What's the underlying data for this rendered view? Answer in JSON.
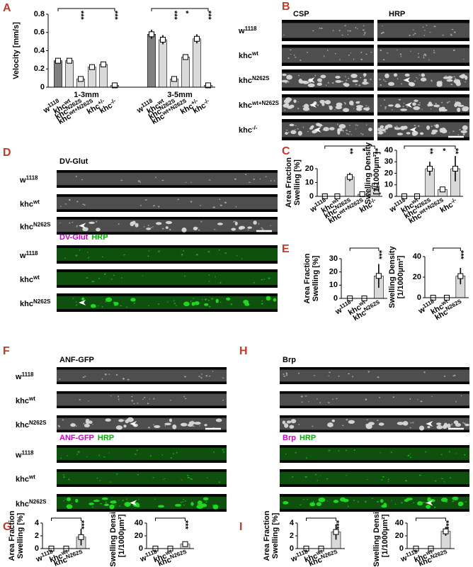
{
  "chart_data": [
    {
      "type": "bar",
      "panel": "A",
      "ylabel": [
        "Velocity [mm/s]"
      ],
      "ylim": [
        0,
        0.8
      ],
      "yticks": [
        0,
        0.2,
        0.4,
        0.6,
        0.8
      ],
      "groups": [
        {
          "name": "1-3mm",
          "categories": [
            {
              "base": "w",
              "sup": "1118"
            },
            {
              "base": "khc",
              "sup": "wt"
            },
            {
              "base": "khc",
              "sup": "N262S"
            },
            {
              "base": "khc",
              "sup": "wt+N262S"
            },
            {
              "base": "khc",
              "sup": "+/-"
            },
            {
              "base": "khc",
              "sup": "-/-"
            }
          ],
          "values": [
            0.29,
            0.29,
            0.09,
            0.22,
            0.25,
            0.02
          ],
          "errors": [
            0.02,
            0.02,
            0.01,
            0.02,
            0.02,
            0.005
          ],
          "significance": [
            null,
            null,
            "***",
            null,
            null,
            "***"
          ],
          "bar_colors": [
            "#808080",
            "#d9d9d9",
            "#d9d9d9",
            "#d9d9d9",
            "#d9d9d9",
            "#d9d9d9"
          ]
        },
        {
          "name": "3-5mm",
          "categories": [
            {
              "base": "w",
              "sup": "1118"
            },
            {
              "base": "khc",
              "sup": "wt"
            },
            {
              "base": "khc",
              "sup": "N262S"
            },
            {
              "base": "khc",
              "sup": "wt+N262S"
            },
            {
              "base": "khc",
              "sup": "+/-"
            },
            {
              "base": "khc",
              "sup": "-/-"
            }
          ],
          "values": [
            0.58,
            0.52,
            0.09,
            0.33,
            0.53,
            0.02
          ],
          "errors": [
            0.05,
            0.05,
            0.01,
            0.02,
            0.05,
            0.005
          ],
          "significance": [
            null,
            null,
            "***",
            "*",
            null,
            "***"
          ],
          "bar_colors": [
            "#808080",
            "#d9d9d9",
            "#d9d9d9",
            "#d9d9d9",
            "#d9d9d9",
            "#d9d9d9"
          ]
        }
      ]
    },
    {
      "type": "bar",
      "panel": "C",
      "ylabel": [
        "Area Fraction",
        "Swelling [%]"
      ],
      "ylim": [
        0,
        20
      ],
      "yticks": [
        0,
        10,
        20
      ],
      "color": "#d9d9d9",
      "categories": [
        {
          "base": "w",
          "sup": "1118"
        },
        {
          "base": "khc",
          "sup": "wt"
        },
        {
          "base": "khc",
          "sup": "N262S"
        },
        {
          "base": "khc",
          "sup": "wt+N262S"
        },
        {
          "base": "khc",
          "sup": "-/-"
        }
      ],
      "values": [
        0,
        0,
        14,
        1.5,
        7.5
      ],
      "errors": [
        0,
        0,
        3,
        0.5,
        2.5
      ],
      "significance": [
        null,
        null,
        "**",
        "*",
        "**"
      ]
    },
    {
      "type": "bar",
      "ylabel": [
        "Swelling Density",
        "[1/1000µm²]"
      ],
      "ylim": [
        0,
        40
      ],
      "yticks": [
        0,
        10,
        20,
        30,
        40
      ],
      "color": "#d9d9d9",
      "categories": [
        {
          "base": "w",
          "sup": "1118"
        },
        {
          "base": "khc",
          "sup": "wt"
        },
        {
          "base": "khc",
          "sup": "N262S"
        },
        {
          "base": "khc",
          "sup": "wt+N262S"
        },
        {
          "base": "khc",
          "sup": "-/-"
        }
      ],
      "values": [
        0,
        0,
        24,
        6,
        24
      ],
      "errors": [
        0,
        0,
        6,
        1,
        11
      ],
      "significance": [
        null,
        null,
        "**",
        "*",
        "**"
      ]
    },
    {
      "type": "bar",
      "panel": "E",
      "ylabel": [
        "Area Fraction",
        "Swelling [%]"
      ],
      "ylim": [
        0,
        30
      ],
      "yticks": [
        0,
        10,
        20,
        30
      ],
      "color": "#d9d9d9",
      "categories": [
        {
          "base": "w",
          "sup": "1118"
        },
        {
          "base": "khc",
          "sup": "wt"
        },
        {
          "base": "khc",
          "sup": "N262S"
        }
      ],
      "values": [
        0,
        0,
        17
      ],
      "errors": [
        0,
        0,
        9
      ],
      "significance": [
        null,
        null,
        "***"
      ]
    },
    {
      "type": "bar",
      "ylabel": [
        "Swelling Density",
        "[1/1000µm²]"
      ],
      "ylim": [
        0,
        40
      ],
      "yticks": [
        0,
        20,
        40
      ],
      "color": "#d9d9d9",
      "categories": [
        {
          "base": "w",
          "sup": "1118"
        },
        {
          "base": "khc",
          "sup": "wt"
        },
        {
          "base": "khc",
          "sup": "N262S"
        }
      ],
      "values": [
        0,
        0,
        21
      ],
      "errors": [
        0,
        0,
        8
      ],
      "significance": [
        null,
        null,
        "***"
      ]
    },
    {
      "type": "bar",
      "panel": "G",
      "ylabel": [
        "Area Fraction",
        "Swelling [%]"
      ],
      "ylim": [
        0,
        4
      ],
      "yticks": [
        0,
        2,
        4
      ],
      "color": "#d9d9d9",
      "categories": [
        {
          "base": "w",
          "sup": "1118"
        },
        {
          "base": "khc",
          "sup": "wt"
        },
        {
          "base": "khc",
          "sup": "N262S"
        }
      ],
      "values": [
        0,
        0,
        1.8
      ],
      "errors": [
        0,
        0,
        1.3
      ],
      "significance": [
        null,
        null,
        "***"
      ]
    },
    {
      "type": "bar",
      "ylabel": [
        "Swelling Density",
        "[1/1000µm²]"
      ],
      "ylim": [
        0,
        40
      ],
      "yticks": [
        0,
        20,
        40
      ],
      "color": "#d9d9d9",
      "categories": [
        {
          "base": "w",
          "sup": "1118"
        },
        {
          "base": "khc",
          "sup": "wt"
        },
        {
          "base": "khc",
          "sup": "N262S"
        }
      ],
      "values": [
        0,
        0,
        7
      ],
      "errors": [
        0,
        0,
        3
      ],
      "significance": [
        null,
        null,
        "***"
      ]
    },
    {
      "type": "bar",
      "panel": "I",
      "ylabel": [
        "Area Fraction",
        "Swelling [%]"
      ],
      "ylim": [
        0,
        4
      ],
      "yticks": [
        0,
        2,
        4
      ],
      "color": "#d9d9d9",
      "categories": [
        {
          "base": "w",
          "sup": "1118"
        },
        {
          "base": "khc",
          "sup": "wt"
        },
        {
          "base": "khc",
          "sup": "N262S"
        }
      ],
      "values": [
        0,
        0,
        2.6
      ],
      "errors": [
        0,
        0,
        1.2
      ],
      "significance": [
        null,
        null,
        "***"
      ]
    },
    {
      "type": "bar",
      "ylabel": [
        "Swelling Density",
        "[1/1000µm²]"
      ],
      "ylim": [
        0,
        40
      ],
      "yticks": [
        0,
        20,
        40
      ],
      "color": "#d9d9d9",
      "categories": [
        {
          "base": "w",
          "sup": "1118"
        },
        {
          "base": "khc",
          "sup": "wt"
        },
        {
          "base": "khc",
          "sup": "N262S"
        }
      ],
      "values": [
        0,
        0,
        27
      ],
      "errors": [
        0,
        0,
        7
      ],
      "significance": [
        null,
        null,
        "***"
      ]
    }
  ],
  "image_panels": [
    {
      "letter": "B",
      "columns": [
        {
          "text": "CSP",
          "color": "#000000"
        },
        {
          "text": "HRP",
          "color": "#000000"
        }
      ],
      "rows": [
        {
          "base": "w",
          "sup": "1118"
        },
        {
          "base": "khc",
          "sup": "wt"
        },
        {
          "base": "khc",
          "sup": "N262S"
        },
        {
          "base": "khc",
          "sup": "wt+N262S"
        },
        {
          "base": "khc",
          "sup": "-/-"
        }
      ]
    },
    {
      "letter": "D",
      "sections": [
        {
          "titles": [
            {
              "text": "DV-Glut",
              "color": "#000000"
            }
          ],
          "rows": [
            {
              "base": "w",
              "sup": "1118"
            },
            {
              "base": "khc",
              "sup": "wt"
            },
            {
              "base": "khc",
              "sup": "N262S"
            }
          ]
        },
        {
          "titles": [
            {
              "text": "DV-Glut",
              "color": "#cc00cc"
            },
            {
              "text": "HRP",
              "color": "#00b000"
            }
          ],
          "rows": [
            {
              "base": "w",
              "sup": "1118"
            },
            {
              "base": "khc",
              "sup": "wt"
            },
            {
              "base": "khc",
              "sup": "N262S"
            }
          ]
        }
      ]
    },
    {
      "letter": "F",
      "sections": [
        {
          "titles": [
            {
              "text": "ANF-GFP",
              "color": "#000000"
            }
          ],
          "rows": [
            {
              "base": "w",
              "sup": "1118"
            },
            {
              "base": "khc",
              "sup": "wt"
            },
            {
              "base": "khc",
              "sup": "N262S"
            }
          ]
        },
        {
          "titles": [
            {
              "text": "ANF-GFP",
              "color": "#cc00cc"
            },
            {
              "text": "HRP",
              "color": "#00b000"
            }
          ],
          "rows": [
            {
              "base": "w",
              "sup": "1118"
            },
            {
              "base": "khc",
              "sup": "wt"
            },
            {
              "base": "khc",
              "sup": "N262S"
            }
          ]
        }
      ]
    },
    {
      "letter": "H",
      "sections": [
        {
          "titles": [
            {
              "text": "Brp",
              "color": "#000000"
            }
          ]
        },
        {
          "titles": [
            {
              "text": "Brp",
              "color": "#cc00cc"
            },
            {
              "text": "HRP",
              "color": "#00b000"
            }
          ]
        }
      ]
    }
  ]
}
